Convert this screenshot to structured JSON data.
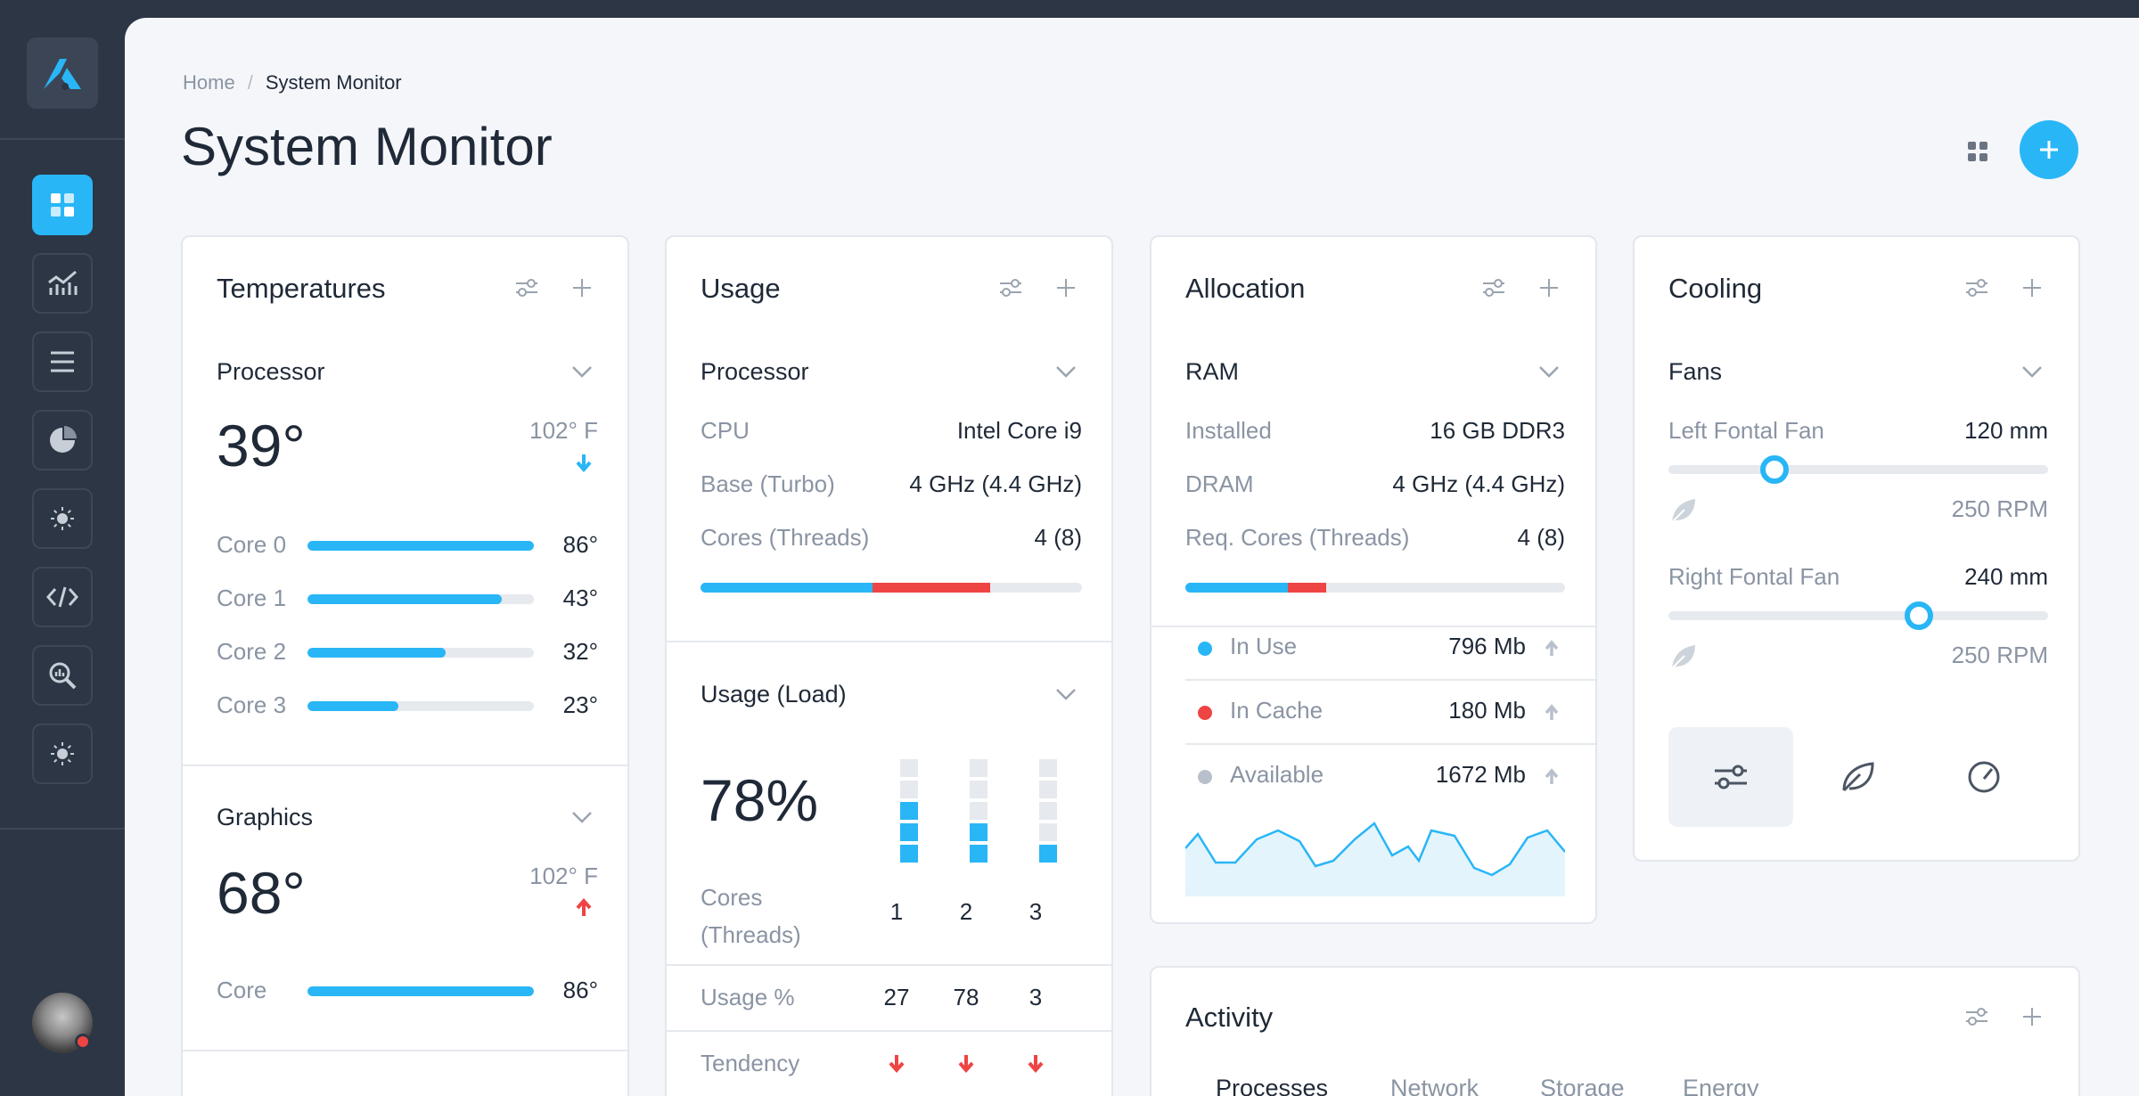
{
  "breadcrumb": {
    "home": "Home",
    "current": "System Monitor"
  },
  "page_title": "System Monitor",
  "colors": {
    "accent": "#29b6f6",
    "danger": "#ef4444",
    "muted": "#b8c0cb",
    "sidebar": "#2c3645"
  },
  "temperatures": {
    "title": "Temperatures",
    "processor": {
      "label": "Processor",
      "temp": "39°",
      "max": "102° F",
      "trend": "down",
      "cores": [
        {
          "name": "Core 0",
          "value": "86°",
          "level": 1.0
        },
        {
          "name": "Core 1",
          "value": "43°",
          "level": 0.86
        },
        {
          "name": "Core 2",
          "value": "32°",
          "level": 0.61
        },
        {
          "name": "Core 3",
          "value": "23°",
          "level": 0.4
        }
      ]
    },
    "graphics": {
      "label": "Graphics",
      "temp": "68°",
      "max": "102° F",
      "trend": "up",
      "core": {
        "name": "Core",
        "value": "86°",
        "level": 1.0
      }
    }
  },
  "usage": {
    "title": "Usage",
    "processor": {
      "label": "Processor",
      "rows": [
        {
          "label": "CPU",
          "value": "Intel Core i9"
        },
        {
          "label": "Base (Turbo)",
          "value": "4 GHz (4.4 GHz)"
        },
        {
          "label": "Cores (Threads)",
          "value": "4 (8)"
        }
      ],
      "bar": {
        "blue": 0.45,
        "red": 0.31
      }
    },
    "load": {
      "label": "Usage (Load)",
      "percent": "78%",
      "cores_label": "Cores (Threads)",
      "cores": [
        {
          "id": "1",
          "usage": "27",
          "bars": 3
        },
        {
          "id": "2",
          "usage": "78",
          "bars": 2
        },
        {
          "id": "3",
          "usage": "3",
          "bars": 1
        }
      ],
      "usage_label": "Usage %",
      "tendency_label": "Tendency"
    }
  },
  "allocation": {
    "title": "Allocation",
    "ram": {
      "label": "RAM",
      "rows": [
        {
          "label": "Installed",
          "value": "16 GB DDR3"
        },
        {
          "label": "DRAM",
          "value": "4 GHz (4.4 GHz)"
        },
        {
          "label": "Req. Cores (Threads)",
          "value": "4 (8)"
        }
      ],
      "bar": {
        "blue": 0.27,
        "red": 0.1
      },
      "legend": [
        {
          "label": "In Use",
          "value": "796 Mb",
          "color": "#29b6f6"
        },
        {
          "label": "In Cache",
          "value": "180 Mb",
          "color": "#ef4444"
        },
        {
          "label": "Available",
          "value": "1672 Mb",
          "color": "#b8c0cb"
        }
      ]
    }
  },
  "cooling": {
    "title": "Cooling",
    "fans_label": "Fans",
    "fans": [
      {
        "name": "Left Fontal Fan",
        "size": "120 mm",
        "rpm": "250 RPM",
        "level": 0.28
      },
      {
        "name": "Right Fontal Fan",
        "size": "240 mm",
        "rpm": "250 RPM",
        "level": 0.66
      }
    ]
  },
  "activity": {
    "title": "Activity",
    "tabs": [
      "Processes",
      "Network",
      "Storage",
      "Energy"
    ]
  }
}
